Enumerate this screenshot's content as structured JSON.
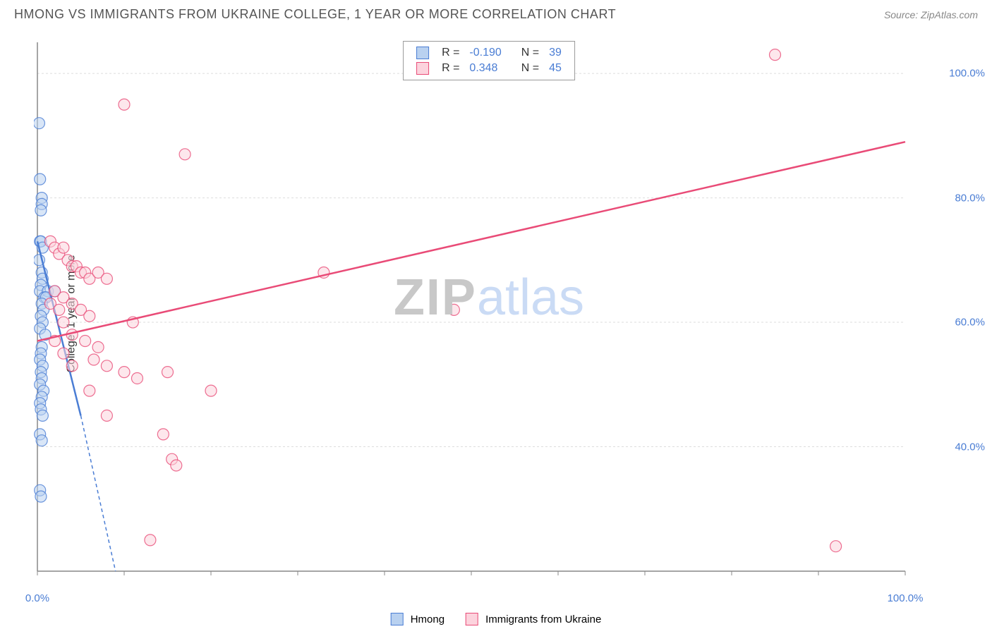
{
  "header": {
    "title": "HMONG VS IMMIGRANTS FROM UKRAINE COLLEGE, 1 YEAR OR MORE CORRELATION CHART",
    "source_label": "Source: ",
    "source_name": "ZipAtlas.com"
  },
  "chart": {
    "type": "scatter",
    "y_axis_label": "College, 1 year or more",
    "background_color": "#ffffff",
    "grid_color": "#dddddd",
    "axis_color": "#888888",
    "xlim": [
      0,
      100
    ],
    "ylim": [
      20,
      105
    ],
    "x_ticks": [
      0,
      10,
      20,
      30,
      40,
      50,
      60,
      70,
      80,
      90,
      100
    ],
    "x_tick_labels": {
      "0": "0.0%",
      "100": "100.0%"
    },
    "y_ticks": [
      40,
      60,
      80,
      100
    ],
    "y_tick_labels": {
      "40": "40.0%",
      "60": "60.0%",
      "80": "80.0%",
      "100": "100.0%"
    },
    "series": [
      {
        "id": "hmong",
        "label": "Hmong",
        "color_fill": "#b9d1f0",
        "color_stroke": "#4a7dd4",
        "marker_radius": 8,
        "marker_opacity": 0.55,
        "r_value": "-0.190",
        "n_value": "39",
        "trend": {
          "x1": 0,
          "y1": 73,
          "x2": 5,
          "y2": 45,
          "style": "solid",
          "width": 2.5
        },
        "trend_ext": {
          "x1": 5,
          "y1": 45,
          "x2": 9,
          "y2": 20,
          "style": "dashed",
          "width": 1.5
        },
        "points": [
          [
            0.2,
            92
          ],
          [
            0.3,
            83
          ],
          [
            0.5,
            80
          ],
          [
            0.5,
            79
          ],
          [
            0.4,
            78
          ],
          [
            0.3,
            73
          ],
          [
            0.4,
            73
          ],
          [
            0.6,
            72
          ],
          [
            0.2,
            70
          ],
          [
            0.5,
            68
          ],
          [
            0.6,
            67
          ],
          [
            0.4,
            66
          ],
          [
            0.3,
            65
          ],
          [
            1.2,
            65
          ],
          [
            2.0,
            65
          ],
          [
            0.8,
            64
          ],
          [
            1.0,
            64
          ],
          [
            0.5,
            63
          ],
          [
            0.7,
            62
          ],
          [
            0.4,
            61
          ],
          [
            0.6,
            60
          ],
          [
            0.3,
            59
          ],
          [
            0.9,
            58
          ],
          [
            0.5,
            56
          ],
          [
            0.4,
            55
          ],
          [
            0.3,
            54
          ],
          [
            0.6,
            53
          ],
          [
            0.4,
            52
          ],
          [
            0.5,
            51
          ],
          [
            0.3,
            50
          ],
          [
            0.7,
            49
          ],
          [
            0.5,
            48
          ],
          [
            0.3,
            47
          ],
          [
            0.4,
            46
          ],
          [
            0.6,
            45
          ],
          [
            0.3,
            42
          ],
          [
            0.5,
            41
          ],
          [
            0.3,
            33
          ],
          [
            0.4,
            32
          ]
        ]
      },
      {
        "id": "ukraine",
        "label": "Immigrants from Ukraine",
        "color_fill": "#fcd3dd",
        "color_stroke": "#e94b77",
        "marker_radius": 8,
        "marker_opacity": 0.55,
        "r_value": "0.348",
        "n_value": "45",
        "trend": {
          "x1": 0,
          "y1": 57,
          "x2": 100,
          "y2": 89,
          "style": "solid",
          "width": 2.5
        },
        "points": [
          [
            85,
            103
          ],
          [
            10,
            95
          ],
          [
            17,
            87
          ],
          [
            48,
            62
          ],
          [
            92,
            24
          ],
          [
            1.5,
            73
          ],
          [
            2,
            72
          ],
          [
            2.5,
            71
          ],
          [
            3,
            72
          ],
          [
            3.5,
            70
          ],
          [
            4,
            69
          ],
          [
            4.5,
            69
          ],
          [
            5,
            68
          ],
          [
            5.5,
            68
          ],
          [
            6,
            67
          ],
          [
            7,
            68
          ],
          [
            8,
            67
          ],
          [
            33,
            68
          ],
          [
            2,
            65
          ],
          [
            3,
            64
          ],
          [
            4,
            63
          ],
          [
            1.5,
            63
          ],
          [
            2.5,
            62
          ],
          [
            5,
            62
          ],
          [
            6,
            61
          ],
          [
            3,
            60
          ],
          [
            11,
            60
          ],
          [
            4,
            58
          ],
          [
            2,
            57
          ],
          [
            5.5,
            57
          ],
          [
            3,
            55
          ],
          [
            7,
            56
          ],
          [
            6.5,
            54
          ],
          [
            8,
            53
          ],
          [
            4,
            53
          ],
          [
            10,
            52
          ],
          [
            11.5,
            51
          ],
          [
            15,
            52
          ],
          [
            20,
            49
          ],
          [
            6,
            49
          ],
          [
            8,
            45
          ],
          [
            14.5,
            42
          ],
          [
            15.5,
            38
          ],
          [
            16,
            37
          ],
          [
            13,
            25
          ]
        ]
      }
    ],
    "watermark": {
      "text1": "ZIP",
      "text2": "atlas"
    },
    "legend_top": {
      "r_label": "R =",
      "n_label": "N ="
    }
  }
}
